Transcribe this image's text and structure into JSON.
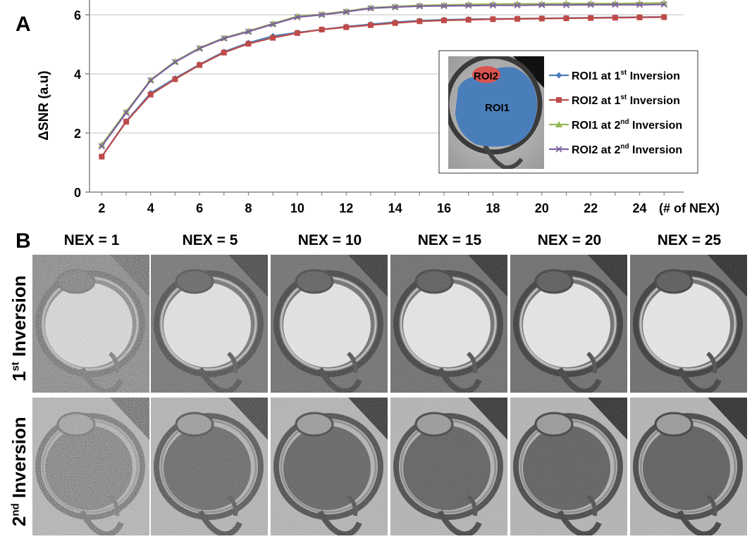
{
  "panel_a_label": "A",
  "panel_b_label": "B",
  "chart_data": {
    "type": "line",
    "title": "",
    "xlabel": "(# of NEX)",
    "ylabel": "ΔSNR (a.u)",
    "xlim": [
      1.5,
      25.8
    ],
    "ylim": [
      0,
      6.5
    ],
    "x_ticks": [
      2,
      4,
      6,
      8,
      10,
      12,
      14,
      16,
      18,
      20,
      22,
      24
    ],
    "y_ticks": [
      0,
      2,
      4,
      6
    ],
    "grid": true,
    "legend_position": "right",
    "x": [
      2,
      3,
      4,
      5,
      6,
      7,
      8,
      9,
      10,
      11,
      12,
      13,
      14,
      15,
      16,
      17,
      18,
      19,
      20,
      21,
      22,
      23,
      24,
      25
    ],
    "series": [
      {
        "name": "ROI1 at 1st  Inversion",
        "label_main": "ROI1 at 1",
        "label_sup": "st",
        "label_rest": "  Inversion",
        "color": "#4a7ebb",
        "marker": "diamond",
        "values": [
          1.2,
          2.4,
          3.35,
          3.85,
          4.32,
          4.75,
          5.05,
          5.28,
          5.4,
          5.5,
          5.6,
          5.68,
          5.75,
          5.8,
          5.83,
          5.85,
          5.86,
          5.87,
          5.88,
          5.89,
          5.9,
          5.91,
          5.92,
          5.93
        ]
      },
      {
        "name": "ROI2 at 1st Inversion",
        "label_main": "ROI2 at 1",
        "label_sup": "st",
        "label_rest": " Inversion",
        "color": "#be4b48",
        "marker": "square",
        "values": [
          1.2,
          2.38,
          3.3,
          3.82,
          4.3,
          4.72,
          5.02,
          5.22,
          5.38,
          5.5,
          5.58,
          5.65,
          5.72,
          5.78,
          5.81,
          5.83,
          5.85,
          5.86,
          5.87,
          5.88,
          5.89,
          5.9,
          5.91,
          5.92
        ]
      },
      {
        "name": "ROI1 at 2nd Inversion",
        "label_main": "ROI1 at 2",
        "label_sup": "nd",
        "label_rest": " Inversion",
        "color": "#98b954",
        "marker": "triangle",
        "values": [
          1.6,
          2.72,
          3.8,
          4.42,
          4.88,
          5.22,
          5.45,
          5.7,
          5.95,
          6.02,
          6.12,
          6.24,
          6.28,
          6.32,
          6.33,
          6.35,
          6.36,
          6.37,
          6.37,
          6.38,
          6.38,
          6.38,
          6.39,
          6.4
        ]
      },
      {
        "name": "ROI2 at 2nd Inversion",
        "label_main": "ROI2 at 2",
        "label_sup": "nd",
        "label_rest": " Inversion",
        "color": "#7d60a0",
        "marker": "x",
        "values": [
          1.55,
          2.68,
          3.78,
          4.4,
          4.86,
          5.2,
          5.43,
          5.68,
          5.92,
          6.0,
          6.1,
          6.22,
          6.26,
          6.29,
          6.3,
          6.31,
          6.32,
          6.32,
          6.33,
          6.33,
          6.34,
          6.34,
          6.34,
          6.35
        ]
      }
    ],
    "inset": {
      "roi1_label": "ROI1",
      "roi2_label": "ROI2",
      "roi1_color": "#4a7ebb",
      "roi2_color": "#d9534f"
    }
  },
  "panel_b": {
    "columns": [
      "NEX = 1",
      "NEX = 5",
      "NEX = 10",
      "NEX = 15",
      "NEX = 20",
      "NEX = 25"
    ],
    "nex_values": [
      1,
      5,
      10,
      15,
      20,
      25
    ],
    "rows": [
      {
        "label_main": "1",
        "label_sup": "st",
        "label_rest": " Inversion",
        "contrast": "bright"
      },
      {
        "label_main": "2",
        "label_sup": "nd",
        "label_rest": " Inversion",
        "contrast": "dark"
      }
    ]
  }
}
